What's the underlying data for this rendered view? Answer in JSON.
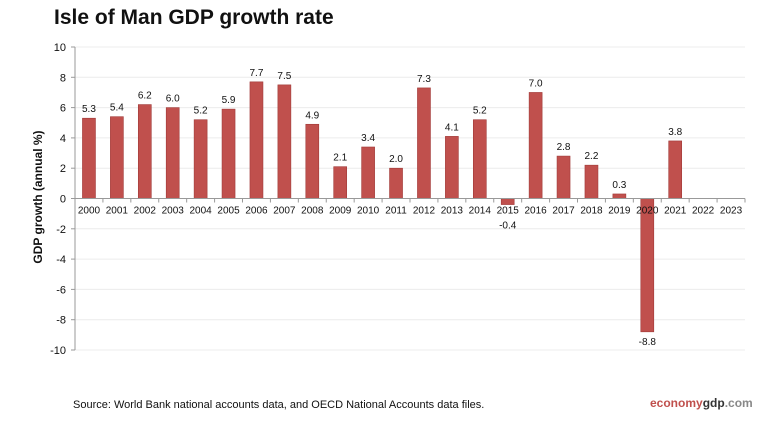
{
  "chart_data": {
    "type": "bar",
    "title": "Isle of Man GDP growth rate",
    "ylabel": "GDP growth (annual %)",
    "xlabel": "",
    "ylim": [
      -10,
      10
    ],
    "yticks": [
      10,
      8,
      6,
      4,
      2,
      0,
      -2,
      -4,
      -6,
      -8,
      -10
    ],
    "categories": [
      "2000",
      "2001",
      "2002",
      "2003",
      "2004",
      "2005",
      "2006",
      "2007",
      "2008",
      "2009",
      "2010",
      "2011",
      "2012",
      "2013",
      "2014",
      "2015",
      "2016",
      "2017",
      "2018",
      "2019",
      "2020",
      "2021",
      "2022",
      "2023"
    ],
    "values": [
      5.3,
      5.4,
      6.2,
      6.0,
      5.2,
      5.9,
      7.7,
      7.5,
      4.9,
      2.1,
      3.4,
      2.0,
      7.3,
      4.1,
      5.2,
      -0.4,
      7.0,
      2.8,
      2.2,
      0.3,
      -8.8,
      3.8,
      null,
      null
    ],
    "data_labels": [
      "5.3",
      "5.4",
      "6.2",
      "6.0",
      "5.2",
      "5.9",
      "7.7",
      "7.5",
      "4.9",
      "2.1",
      "3.4",
      "2.0",
      "7.3",
      "4.1",
      "5.2",
      "-0.4",
      "7.0",
      "2.8",
      "2.2",
      "0.3",
      "-8.8",
      "3.8",
      "",
      ""
    ],
    "bar_color": "#c0504d",
    "grid": true,
    "legend": "none"
  },
  "footer": {
    "source": "Source:  World Bank national accounts data, and OECD National Accounts data files.",
    "logo": {
      "part1": "economy",
      "part2": "gdp",
      "part3": ".com"
    }
  }
}
